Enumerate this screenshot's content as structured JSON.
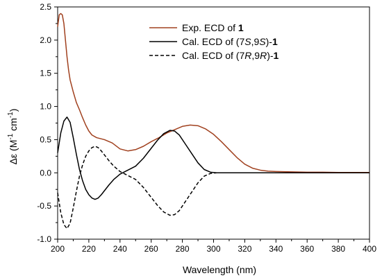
{
  "chart_data": {
    "type": "line",
    "xlabel": "Wavelength (nm)",
    "ylabel": {
      "prefix": "Δε (M",
      "exp1": "-1",
      "mid": " cm",
      "exp2": "-1",
      "suffix": ")"
    },
    "xlim": [
      200,
      400
    ],
    "ylim": [
      -1.0,
      2.5
    ],
    "x_ticks": [
      200,
      220,
      240,
      260,
      280,
      300,
      320,
      340,
      360,
      380,
      400
    ],
    "y_ticks": [
      -1.0,
      -0.5,
      0.0,
      0.5,
      1.0,
      1.5,
      2.0,
      2.5
    ],
    "legend_position": "top-right",
    "legend": [
      {
        "parts": [
          {
            "t": "Exp. ECD of ",
            "s": ""
          },
          {
            "t": "1",
            "s": "bold"
          }
        ]
      },
      {
        "parts": [
          {
            "t": "Cal. ECD of (7",
            "s": ""
          },
          {
            "t": "S",
            "s": "italic"
          },
          {
            "t": ",9",
            "s": ""
          },
          {
            "t": "S",
            "s": "italic"
          },
          {
            "t": ")-",
            "s": ""
          },
          {
            "t": "1",
            "s": "bold"
          }
        ]
      },
      {
        "parts": [
          {
            "t": "Cal. ECD of (7",
            "s": ""
          },
          {
            "t": "R",
            "s": "italic"
          },
          {
            "t": ",9",
            "s": ""
          },
          {
            "t": "R",
            "s": "italic"
          },
          {
            "t": ")-",
            "s": ""
          },
          {
            "t": "1",
            "s": "bold"
          }
        ]
      }
    ],
    "series": [
      {
        "color": "#a0401e",
        "dash": "solid",
        "x": [
          200,
          201,
          202,
          203,
          204,
          205,
          206,
          207,
          208,
          210,
          212,
          214,
          216,
          218,
          220,
          222,
          225,
          230,
          235,
          240,
          245,
          250,
          255,
          260,
          265,
          270,
          275,
          280,
          285,
          290,
          295,
          300,
          305,
          310,
          315,
          320,
          325,
          330,
          335,
          340,
          350,
          360,
          370,
          380,
          390,
          400
        ],
        "y": [
          2.2,
          2.38,
          2.4,
          2.38,
          2.25,
          2.0,
          1.75,
          1.55,
          1.4,
          1.22,
          1.06,
          0.95,
          0.83,
          0.72,
          0.63,
          0.57,
          0.53,
          0.5,
          0.45,
          0.36,
          0.33,
          0.35,
          0.4,
          0.47,
          0.53,
          0.6,
          0.65,
          0.7,
          0.72,
          0.71,
          0.66,
          0.58,
          0.47,
          0.35,
          0.23,
          0.13,
          0.07,
          0.04,
          0.025,
          0.02,
          0.015,
          0.01,
          0.01,
          0.005,
          0.005,
          0.005
        ]
      },
      {
        "color": "#000000",
        "dash": "solid",
        "x": [
          200,
          202,
          204,
          206,
          208,
          210,
          212,
          214,
          216,
          218,
          220,
          222,
          224,
          226,
          228,
          230,
          233,
          236,
          240,
          245,
          250,
          255,
          260,
          264,
          268,
          272,
          275,
          278,
          282,
          286,
          290,
          294,
          298,
          302,
          306,
          310,
          320,
          340,
          360,
          380,
          400
        ],
        "y": [
          0.3,
          0.6,
          0.78,
          0.84,
          0.76,
          0.53,
          0.28,
          0.05,
          -0.12,
          -0.25,
          -0.33,
          -0.38,
          -0.4,
          -0.38,
          -0.33,
          -0.27,
          -0.18,
          -0.1,
          -0.02,
          0.04,
          0.1,
          0.22,
          0.37,
          0.49,
          0.59,
          0.64,
          0.63,
          0.57,
          0.43,
          0.29,
          0.15,
          0.05,
          0.01,
          0.0,
          0.0,
          0.0,
          0.0,
          0.0,
          0.0,
          0.0,
          0.0
        ]
      },
      {
        "color": "#000000",
        "dash": "dashed",
        "x": [
          200,
          202,
          204,
          206,
          208,
          210,
          212,
          214,
          216,
          218,
          220,
          222,
          224,
          226,
          228,
          230,
          233,
          236,
          240,
          245,
          250,
          255,
          260,
          264,
          268,
          272,
          275,
          278,
          282,
          286,
          290,
          294,
          298,
          302,
          306,
          310,
          320
        ],
        "y": [
          -0.3,
          -0.6,
          -0.78,
          -0.84,
          -0.76,
          -0.53,
          -0.28,
          -0.05,
          0.12,
          0.25,
          0.33,
          0.38,
          0.4,
          0.38,
          0.33,
          0.27,
          0.18,
          0.1,
          0.02,
          -0.04,
          -0.1,
          -0.22,
          -0.37,
          -0.49,
          -0.59,
          -0.64,
          -0.63,
          -0.57,
          -0.43,
          -0.29,
          -0.15,
          -0.05,
          -0.01,
          0.0,
          0.0,
          0.0,
          0.0
        ]
      }
    ]
  }
}
